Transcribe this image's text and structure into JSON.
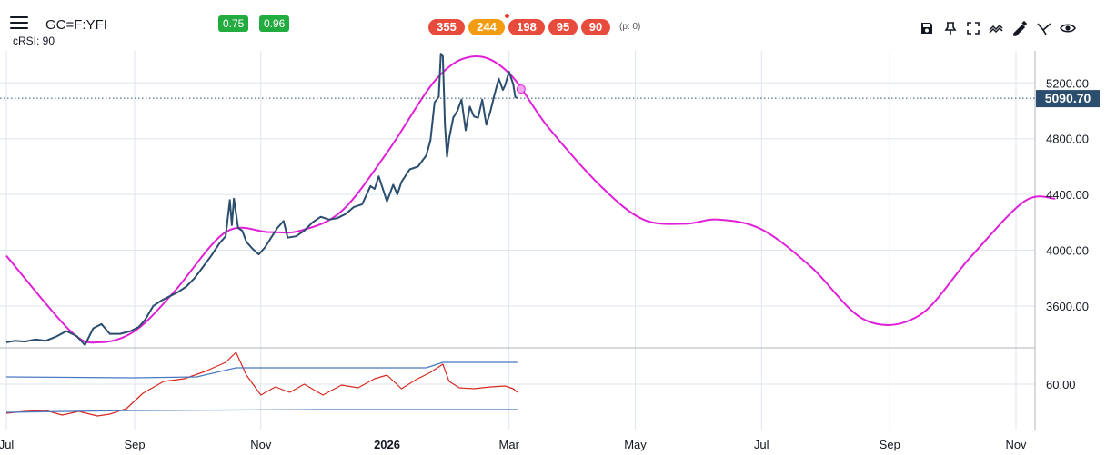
{
  "header": {
    "symbol": "GC=F:YFI",
    "subtitle": "cRSI: 90",
    "badges": [
      "0.75",
      "0.96"
    ],
    "pills": [
      {
        "label": "355",
        "color": "#e84b3c"
      },
      {
        "label": "244",
        "color": "#f39c12"
      },
      {
        "label": "198",
        "color": "#e84b3c"
      },
      {
        "label": "95",
        "color": "#e84b3c"
      },
      {
        "label": "90",
        "color": "#e84b3c"
      }
    ],
    "pills_note": "(p: 0)"
  },
  "toolbar": {
    "icons": [
      "save-icon",
      "pin-icon",
      "fullscreen-icon",
      "indicators-icon",
      "drawing-icon",
      "cycles-icon",
      "visibility-icon"
    ]
  },
  "colors": {
    "price": "#2b4d6e",
    "cycle": "#e020d8",
    "crsi": "#d6281f",
    "band": "#4a78c2",
    "last_price_bg": "#2b4d6e",
    "grid": "#dde5ee"
  },
  "chart_data": [
    {
      "type": "line",
      "x_axis": {
        "type": "date",
        "range": [
          "2025-07-01",
          "2026-11-20"
        ],
        "tick_labels": [
          "Jul",
          "Sep",
          "Nov",
          "2026",
          "Mar",
          "May",
          "Jul",
          "Sep",
          "Nov"
        ],
        "tick_dates": [
          "2025-07-01",
          "2025-09-01",
          "2025-11-01",
          "2026-01-01",
          "2026-03-01",
          "2026-05-01",
          "2026-07-01",
          "2026-09-01",
          "2026-11-01"
        ]
      },
      "y_axis": {
        "range": [
          3300,
          5430
        ],
        "ticks": [
          3600,
          4000,
          4400,
          4800,
          5200
        ],
        "tick_labels": [
          "3600.00",
          "4000.00",
          "4400.00",
          "4800.00",
          "5200.00"
        ],
        "position": "right"
      },
      "last_price": 5090.7,
      "last_price_label": "5090.70",
      "grid": true,
      "series": [
        {
          "role": "price",
          "x": [
            "2025-07-01",
            "2025-07-05",
            "2025-07-10",
            "2025-07-15",
            "2025-07-20",
            "2025-07-25",
            "2025-07-30",
            "2025-08-04",
            "2025-08-08",
            "2025-08-12",
            "2025-08-16",
            "2025-08-20",
            "2025-08-25",
            "2025-08-30",
            "2025-09-03",
            "2025-09-06",
            "2025-09-10",
            "2025-09-14",
            "2025-09-18",
            "2025-09-22",
            "2025-09-26",
            "2025-09-30",
            "2025-10-04",
            "2025-10-08",
            "2025-10-12",
            "2025-10-15",
            "2025-10-17",
            "2025-10-18",
            "2025-10-19",
            "2025-10-21",
            "2025-10-23",
            "2025-10-25",
            "2025-10-28",
            "2025-10-31",
            "2025-11-03",
            "2025-11-06",
            "2025-11-09",
            "2025-11-12",
            "2025-11-14",
            "2025-11-18",
            "2025-11-22",
            "2025-11-26",
            "2025-11-30",
            "2025-12-04",
            "2025-12-08",
            "2025-12-12",
            "2025-12-16",
            "2025-12-20",
            "2025-12-24",
            "2025-12-26",
            "2025-12-28",
            "2026-01-01",
            "2026-01-04",
            "2026-01-06",
            "2026-01-08",
            "2026-01-12",
            "2026-01-16",
            "2026-01-20",
            "2026-01-22",
            "2026-01-24",
            "2026-01-26",
            "2026-01-27",
            "2026-01-28",
            "2026-01-29",
            "2026-01-30",
            "2026-01-31",
            "2026-02-02",
            "2026-02-04",
            "2026-02-06",
            "2026-02-08",
            "2026-02-10",
            "2026-02-12",
            "2026-02-14",
            "2026-02-16",
            "2026-02-18",
            "2026-02-20",
            "2026-02-22",
            "2026-02-24",
            "2026-02-26",
            "2026-02-27",
            "2026-03-01",
            "2026-03-03",
            "2026-03-04",
            "2026-03-05"
          ],
          "y": [
            3340,
            3350,
            3345,
            3360,
            3350,
            3380,
            3420,
            3385,
            3320,
            3440,
            3470,
            3400,
            3400,
            3420,
            3450,
            3500,
            3600,
            3640,
            3670,
            3700,
            3740,
            3800,
            3880,
            3960,
            4050,
            4100,
            4360,
            4180,
            4370,
            4160,
            4140,
            4060,
            4010,
            3970,
            4020,
            4090,
            4160,
            4210,
            4090,
            4100,
            4140,
            4200,
            4240,
            4220,
            4230,
            4260,
            4310,
            4330,
            4460,
            4440,
            4530,
            4350,
            4470,
            4400,
            4490,
            4580,
            4600,
            4680,
            4790,
            5060,
            5100,
            5410,
            5390,
            4900,
            4670,
            4800,
            4950,
            5000,
            5080,
            4860,
            5030,
            4960,
            4950,
            5080,
            4900,
            5000,
            5120,
            5230,
            5150,
            5180,
            5280,
            5190,
            5100,
            5090.7
          ]
        },
        {
          "role": "cycle",
          "x": [
            "2025-07-01",
            "2025-08-01",
            "2025-08-15",
            "2025-09-01",
            "2025-09-20",
            "2025-10-15",
            "2025-11-05",
            "2025-11-20",
            "2025-12-10",
            "2026-01-01",
            "2026-01-25",
            "2026-02-12",
            "2026-03-01",
            "2026-03-20",
            "2026-04-15",
            "2026-05-05",
            "2026-05-25",
            "2026-06-10",
            "2026-07-01",
            "2026-07-25",
            "2026-08-20",
            "2026-09-15",
            "2026-10-10",
            "2026-11-05",
            "2026-11-20"
          ],
          "y": [
            3960,
            3420,
            3340,
            3420,
            3700,
            4130,
            4130,
            4140,
            4280,
            4700,
            5230,
            5390,
            5270,
            4880,
            4450,
            4220,
            4190,
            4220,
            4150,
            3880,
            3500,
            3530,
            3950,
            4350,
            4370
          ]
        }
      ]
    },
    {
      "type": "line",
      "x_axis": {
        "type": "date",
        "range": [
          "2025-07-01",
          "2026-11-20"
        ]
      },
      "y_axis": {
        "range": [
          10,
          100
        ],
        "ticks": [
          60
        ],
        "tick_labels": [
          "60.00"
        ],
        "position": "right"
      },
      "series": [
        {
          "role": "crsi",
          "x": [
            "2025-07-01",
            "2025-07-10",
            "2025-07-20",
            "2025-07-28",
            "2025-08-05",
            "2025-08-14",
            "2025-08-20",
            "2025-08-28",
            "2025-09-05",
            "2025-09-15",
            "2025-09-25",
            "2025-10-05",
            "2025-10-15",
            "2025-10-20",
            "2025-10-25",
            "2025-11-01",
            "2025-11-08",
            "2025-11-15",
            "2025-11-22",
            "2025-12-01",
            "2025-12-10",
            "2025-12-18",
            "2025-12-26",
            "2026-01-01",
            "2026-01-08",
            "2026-01-15",
            "2026-01-22",
            "2026-01-28",
            "2026-01-31",
            "2026-02-05",
            "2026-02-12",
            "2026-02-20",
            "2026-02-27",
            "2026-03-03",
            "2026-03-05"
          ],
          "y": [
            28,
            30,
            31,
            26,
            30,
            25,
            27,
            33,
            50,
            63,
            66,
            74,
            84,
            95,
            70,
            48,
            57,
            51,
            60,
            48,
            59,
            56,
            66,
            70,
            55,
            65,
            73,
            82,
            63,
            56,
            55,
            57,
            58,
            55,
            51
          ]
        },
        {
          "role": "upper-band",
          "x": [
            "2025-07-01",
            "2025-09-01",
            "2025-10-01",
            "2025-10-20",
            "2025-12-01",
            "2026-01-20",
            "2026-01-28",
            "2026-03-05"
          ],
          "y": [
            68,
            67,
            68,
            78,
            78,
            78,
            84,
            84
          ]
        },
        {
          "role": "lower-band",
          "x": [
            "2025-07-01",
            "2025-09-01",
            "2025-12-01",
            "2026-03-05"
          ],
          "y": [
            29,
            31,
            32,
            32
          ]
        }
      ]
    }
  ]
}
